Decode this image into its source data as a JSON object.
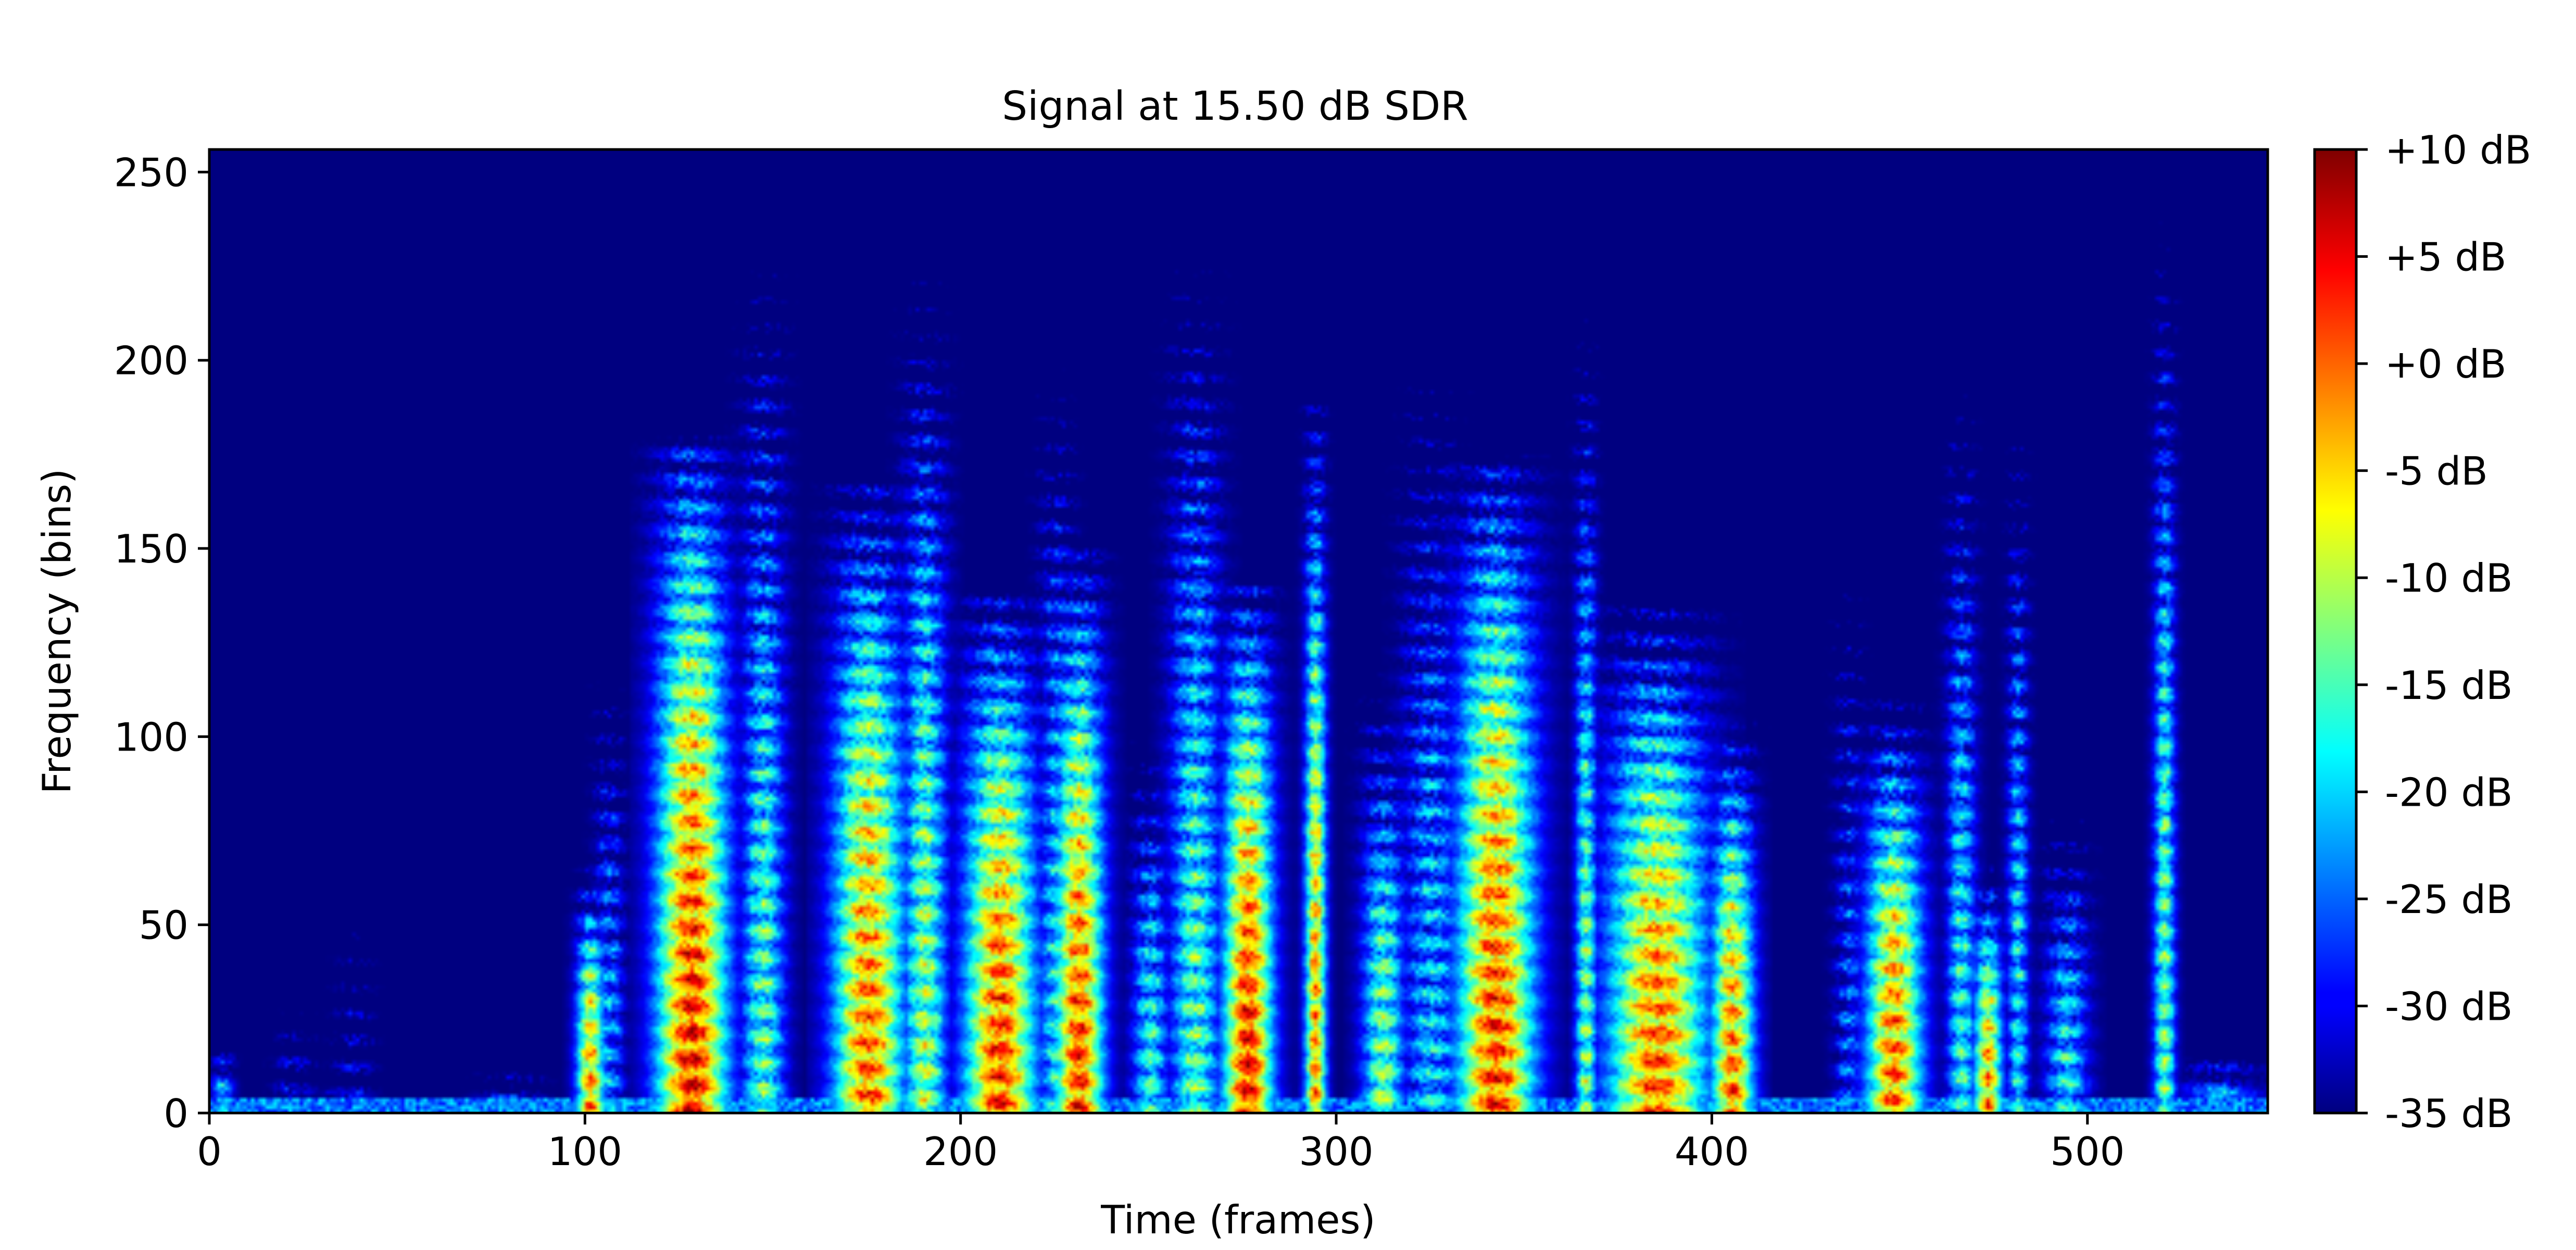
{
  "chart_data": {
    "type": "heatmap",
    "title": "Signal at 15.50 dB SDR",
    "xlabel": "Time (frames)",
    "ylabel": "Frequency (bins)",
    "xlim": [
      0,
      548
    ],
    "ylim": [
      0,
      256
    ],
    "x_ticks": [
      0,
      100,
      200,
      300,
      400,
      500
    ],
    "x_tick_labels": [
      "0",
      "100",
      "200",
      "300",
      "400",
      "500"
    ],
    "y_ticks": [
      0,
      50,
      100,
      150,
      200,
      250
    ],
    "y_tick_labels": [
      "0",
      "50",
      "100",
      "150",
      "200",
      "250"
    ],
    "colormap": "jet",
    "colorbar": {
      "range": [
        -35,
        10
      ],
      "ticks": [
        10,
        5,
        0,
        -5,
        -10,
        -15,
        -20,
        -25,
        -30,
        -35
      ],
      "tick_labels": [
        "+10 dB",
        "+5 dB",
        "+0 dB",
        "-5 dB",
        "-10 dB",
        "-15 dB",
        "-20 dB",
        "-25 dB",
        "-30 dB",
        "-35 dB"
      ]
    },
    "events": [
      {
        "t": 3,
        "w": 3,
        "fmax": 22,
        "peak": -12
      },
      {
        "t": 22,
        "w": 5,
        "fmax": 48,
        "peak": -24
      },
      {
        "t": 35,
        "w": 8,
        "fmax": 15,
        "peak": -26
      },
      {
        "t": 38,
        "w": 5,
        "fmax": 95,
        "peak": -26
      },
      {
        "t": 80,
        "w": 8,
        "fmax": 15,
        "peak": -18
      },
      {
        "t": 101,
        "w": 4,
        "fmax": 60,
        "peak": 6
      },
      {
        "t": 106,
        "w": 4,
        "fmax": 150,
        "peak": -14
      },
      {
        "t": 128,
        "w": 10,
        "fmax": 170,
        "peak": 12
      },
      {
        "t": 147,
        "w": 6,
        "fmax": 240,
        "peak": -6
      },
      {
        "t": 175,
        "w": 10,
        "fmax": 160,
        "peak": 8
      },
      {
        "t": 190,
        "w": 6,
        "fmax": 220,
        "peak": -2
      },
      {
        "t": 210,
        "w": 10,
        "fmax": 130,
        "peak": 10
      },
      {
        "t": 225,
        "w": 5,
        "fmax": 225,
        "peak": -10
      },
      {
        "t": 231,
        "w": 7,
        "fmax": 140,
        "peak": 10
      },
      {
        "t": 250,
        "w": 5,
        "fmax": 110,
        "peak": -8
      },
      {
        "t": 262,
        "w": 7,
        "fmax": 240,
        "peak": -6
      },
      {
        "t": 276,
        "w": 7,
        "fmax": 130,
        "peak": 12
      },
      {
        "t": 294,
        "w": 3,
        "fmax": 180,
        "peak": 6
      },
      {
        "t": 312,
        "w": 6,
        "fmax": 120,
        "peak": -4
      },
      {
        "t": 325,
        "w": 8,
        "fmax": 235,
        "peak": -12
      },
      {
        "t": 342,
        "w": 11,
        "fmax": 165,
        "peak": 10
      },
      {
        "t": 366,
        "w": 3,
        "fmax": 215,
        "peak": -4
      },
      {
        "t": 385,
        "w": 14,
        "fmax": 125,
        "peak": 8
      },
      {
        "t": 405,
        "w": 6,
        "fmax": 95,
        "peak": 8
      },
      {
        "t": 436,
        "w": 4,
        "fmax": 200,
        "peak": -18
      },
      {
        "t": 448,
        "w": 8,
        "fmax": 100,
        "peak": 8
      },
      {
        "t": 466,
        "w": 4,
        "fmax": 210,
        "peak": -8
      },
      {
        "t": 473,
        "w": 4,
        "fmax": 60,
        "peak": 6
      },
      {
        "t": 481,
        "w": 3,
        "fmax": 210,
        "peak": -10
      },
      {
        "t": 494,
        "w": 6,
        "fmax": 90,
        "peak": -10
      },
      {
        "t": 520,
        "w": 3,
        "fmax": 240,
        "peak": -4
      },
      {
        "t": 535,
        "w": 10,
        "fmax": 20,
        "peak": -14
      }
    ]
  }
}
